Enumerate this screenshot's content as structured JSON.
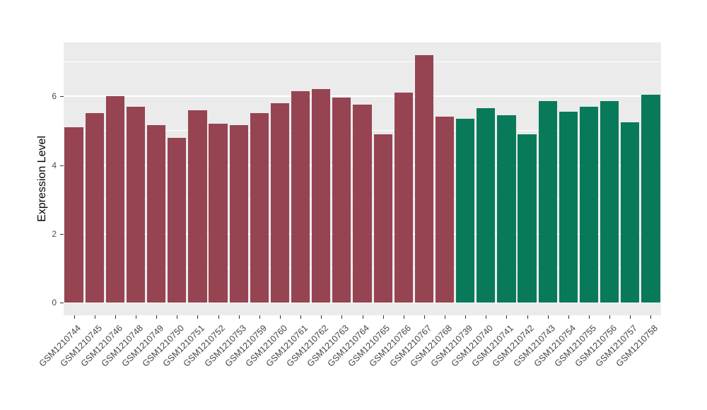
{
  "figure": {
    "background": "#ffffff",
    "panel_background": "#EBEBEB",
    "gridline_color": "#ffffff",
    "axis_text_color": "#4D4D4D",
    "axis_title_color": "#000000"
  },
  "chart_data": {
    "type": "bar",
    "title": "",
    "xlabel": "",
    "ylabel": "Expression Level",
    "ylim": [
      0,
      7.56
    ],
    "yticks": [
      0,
      2,
      4,
      6
    ],
    "minor_yticks": [
      1,
      3,
      5,
      7
    ],
    "grid": true,
    "legend_position": "none",
    "categories": [
      "GSM1210744",
      "GSM1210745",
      "GSM1210746",
      "GSM1210748",
      "GSM1210749",
      "GSM1210750",
      "GSM1210751",
      "GSM1210752",
      "GSM1210753",
      "GSM1210759",
      "GSM1210760",
      "GSM1210761",
      "GSM1210762",
      "GSM1210763",
      "GSM1210764",
      "GSM1210765",
      "GSM1210766",
      "GSM1210767",
      "GSM1210768",
      "GSM1210739",
      "GSM1210740",
      "GSM1210741",
      "GSM1210742",
      "GSM1210743",
      "GSM1210754",
      "GSM1210755",
      "GSM1210756",
      "GSM1210757",
      "GSM1210758"
    ],
    "values": [
      5.1,
      5.5,
      6.0,
      5.7,
      5.15,
      4.8,
      5.6,
      5.2,
      5.15,
      5.5,
      5.8,
      6.15,
      6.2,
      5.95,
      5.75,
      4.9,
      6.1,
      7.2,
      5.4,
      5.35,
      5.65,
      5.45,
      4.9,
      5.85,
      5.55,
      5.7,
      5.85,
      5.25,
      6.05
    ],
    "bar_colors": [
      "#964452",
      "#964452",
      "#964452",
      "#964452",
      "#964452",
      "#964452",
      "#964452",
      "#964452",
      "#964452",
      "#964452",
      "#964452",
      "#964452",
      "#964452",
      "#964452",
      "#964452",
      "#964452",
      "#964452",
      "#964452",
      "#964452",
      "#097A59",
      "#097A59",
      "#097A59",
      "#097A59",
      "#097A59",
      "#097A59",
      "#097A59",
      "#097A59",
      "#097A59",
      "#097A59"
    ],
    "palette": {
      "left_group": "#964452",
      "right_group": "#097A59"
    }
  }
}
